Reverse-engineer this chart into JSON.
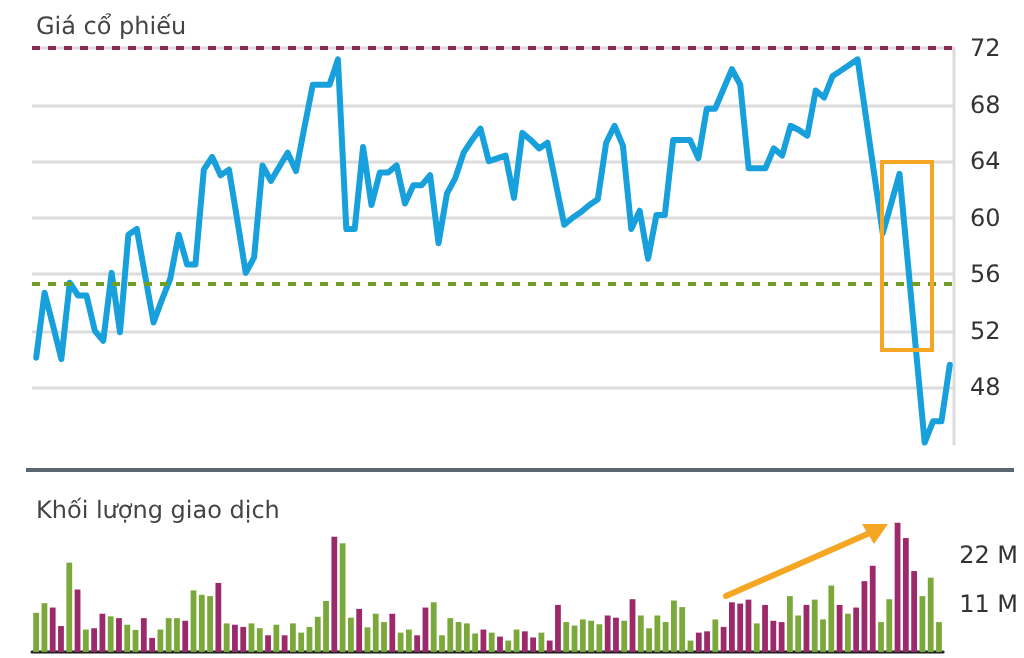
{
  "chart_data": [
    {
      "type": "line",
      "title": "Giá cổ phiếu",
      "tick_labels": "y",
      "grid": "y",
      "line_style": "solid",
      "categories": [
        null,
        null,
        null,
        null,
        null,
        null,
        null,
        null,
        null,
        null,
        null,
        null,
        null,
        null,
        null,
        null,
        null,
        null,
        null,
        null,
        null,
        null,
        null,
        null,
        null,
        null,
        null,
        null,
        null,
        null,
        null,
        null,
        null,
        null,
        null,
        null,
        null,
        null,
        null,
        null,
        null,
        null,
        null,
        null,
        null,
        null,
        null,
        null,
        null,
        null,
        null,
        null,
        null,
        null,
        null,
        null,
        null,
        null,
        null,
        null,
        null,
        null,
        null,
        null,
        null,
        null,
        null,
        null,
        null,
        null,
        null,
        null,
        null,
        null,
        null,
        null,
        null,
        null,
        null,
        null,
        null,
        null,
        null,
        null,
        null,
        null,
        null,
        null,
        null,
        null,
        null,
        null,
        null,
        null,
        null,
        null,
        null,
        null,
        null,
        null,
        null,
        null,
        null,
        null,
        null,
        null,
        null,
        null,
        null,
        null
      ],
      "ylim": [
        44,
        72
      ],
      "yticks": [
        48,
        52,
        56,
        60,
        64,
        68,
        72
      ],
      "series": [
        {
          "color": "#17a0dc",
          "values": [
            50.1,
            54.7,
            52.4,
            50.0,
            55.4,
            54.5,
            54.5,
            52.0,
            51.3,
            56.1,
            51.9,
            58.8,
            59.2,
            55.9,
            52.6,
            54.2,
            55.7,
            58.8,
            56.7,
            56.7,
            63.4,
            64.3,
            63.0,
            63.4,
            59.8,
            56.1,
            57.2,
            63.7,
            62.6,
            63.6,
            64.6,
            63.3,
            66.4,
            69.4,
            69.4,
            69.4,
            71.2,
            59.2,
            59.2,
            65.0,
            60.9,
            63.2,
            63.2,
            63.7,
            61.0,
            62.3,
            62.3,
            63.0,
            58.2,
            61.7,
            62.8,
            64.6,
            65.5,
            66.3,
            64.0,
            64.2,
            64.4,
            61.4,
            66.0,
            65.5,
            64.9,
            65.3,
            62.4,
            59.5,
            60.0,
            60.4,
            60.9,
            61.3,
            65.3,
            66.5,
            65.1,
            59.2,
            60.5,
            57.1,
            60.2,
            60.2,
            65.5,
            65.5,
            65.5,
            64.2,
            67.7,
            67.7,
            69.1,
            70.5,
            69.4,
            63.5,
            63.5,
            63.5,
            64.9,
            64.4,
            66.5,
            66.2,
            65.8,
            69.0,
            68.5,
            70.0,
            70.4,
            70.8,
            71.2,
            67.1,
            63.0,
            58.9,
            61.0,
            63.1,
            56.8,
            50.4,
            44.1,
            45.6,
            45.6,
            49.6
          ]
        }
      ],
      "ref_lines": [
        {
          "axis": "y",
          "value": 72,
          "color": "#8e2a57",
          "line_style": "dashed"
        },
        {
          "axis": "y",
          "value": 55.3,
          "color": "#6e9e24",
          "line_style": "dashed"
        }
      ]
    },
    {
      "type": "bar",
      "title": "Khối lượng giao dịch",
      "tick_labels": "y",
      "categories": [
        null,
        null,
        null,
        null,
        null,
        null,
        null,
        null,
        null,
        null,
        null,
        null,
        null,
        null,
        null,
        null,
        null,
        null,
        null,
        null,
        null,
        null,
        null,
        null,
        null,
        null,
        null,
        null,
        null,
        null,
        null,
        null,
        null,
        null,
        null,
        null,
        null,
        null,
        null,
        null,
        null,
        null,
        null,
        null,
        null,
        null,
        null,
        null,
        null,
        null,
        null,
        null,
        null,
        null,
        null,
        null,
        null,
        null,
        null,
        null,
        null,
        null,
        null,
        null,
        null,
        null,
        null,
        null,
        null,
        null,
        null,
        null,
        null,
        null,
        null,
        null,
        null,
        null,
        null,
        null,
        null,
        null,
        null,
        null,
        null,
        null,
        null,
        null,
        null,
        null,
        null,
        null,
        null,
        null,
        null,
        null,
        null,
        null,
        null,
        null,
        null,
        null,
        null,
        null,
        null,
        null,
        null,
        null,
        null,
        null
      ],
      "ylim": [
        0,
        30
      ],
      "yticks": [
        {
          "value": 11,
          "label": "11 M"
        },
        {
          "value": 22,
          "label": "22 M"
        }
      ],
      "values": [
        8.9,
        11.1,
        10.1,
        5.9,
        20.3,
        14.2,
        5.1,
        5.4,
        8.7,
        8.1,
        7.7,
        6.2,
        5.0,
        7.7,
        3.2,
        5.1,
        7.7,
        7.7,
        7.1,
        14.0,
        13.0,
        12.7,
        15.7,
        6.5,
        6.2,
        5.7,
        6.5,
        5.4,
        3.8,
        6.2,
        3.8,
        6.5,
        4.4,
        5.7,
        8.0,
        11.6,
        26.2,
        24.7,
        7.8,
        9.8,
        5.6,
        8.7,
        6.8,
        8.7,
        4.4,
        5.1,
        3.8,
        10.1,
        11.3,
        3.8,
        7.7,
        6.8,
        6.5,
        4.2,
        5.1,
        4.4,
        3.5,
        2.6,
        5.1,
        4.7,
        3.3,
        4.4,
        2.6,
        10.7,
        6.8,
        6.0,
        7.4,
        7.1,
        6.3,
        8.3,
        7.8,
        7.1,
        12.0,
        8.3,
        5.4,
        8.3,
        6.8,
        11.7,
        10.2,
        2.6,
        4.4,
        4.7,
        7.4,
        5.7,
        11.3,
        11.0,
        11.9,
        6.5,
        10.7,
        7.1,
        6.8,
        12.7,
        8.3,
        10.7,
        11.9,
        7.4,
        15.1,
        10.7,
        8.7,
        10.1,
        16.1,
        19.6,
        6.8,
        12.0,
        29.4,
        25.9,
        18.4,
        12.7,
        16.9,
        6.8
      ],
      "colors": [
        "#7aa83a",
        "#7aa83a",
        "#9c2a6b",
        "#9c2a6b",
        "#7aa83a",
        "#9c2a6b",
        "#7aa83a",
        "#9c2a6b",
        "#9c2a6b",
        "#7aa83a",
        "#9c2a6b",
        "#7aa83a",
        "#7aa83a",
        "#9c2a6b",
        "#9c2a6b",
        "#7aa83a",
        "#7aa83a",
        "#7aa83a",
        "#9c2a6b",
        "#7aa83a",
        "#7aa83a",
        "#7aa83a",
        "#9c2a6b",
        "#7aa83a",
        "#9c2a6b",
        "#9c2a6b",
        "#7aa83a",
        "#7aa83a",
        "#9c2a6b",
        "#7aa83a",
        "#9c2a6b",
        "#7aa83a",
        "#7aa83a",
        "#7aa83a",
        "#7aa83a",
        "#7aa83a",
        "#9c2a6b",
        "#7aa83a",
        "#7aa83a",
        "#9c2a6b",
        "#7aa83a",
        "#7aa83a",
        "#7aa83a",
        "#9c2a6b",
        "#7aa83a",
        "#7aa83a",
        "#9c2a6b",
        "#9c2a6b",
        "#7aa83a",
        "#7aa83a",
        "#7aa83a",
        "#7aa83a",
        "#7aa83a",
        "#7aa83a",
        "#9c2a6b",
        "#7aa83a",
        "#9c2a6b",
        "#7aa83a",
        "#7aa83a",
        "#9c2a6b",
        "#9c2a6b",
        "#7aa83a",
        "#9c2a6b",
        "#9c2a6b",
        "#7aa83a",
        "#7aa83a",
        "#7aa83a",
        "#7aa83a",
        "#7aa83a",
        "#9c2a6b",
        "#9c2a6b",
        "#7aa83a",
        "#9c2a6b",
        "#7aa83a",
        "#7aa83a",
        "#7aa83a",
        "#7aa83a",
        "#7aa83a",
        "#7aa83a",
        "#7aa83a",
        "#9c2a6b",
        "#9c2a6b",
        "#7aa83a",
        "#9c2a6b",
        "#9c2a6b",
        "#9c2a6b",
        "#9c2a6b",
        "#7aa83a",
        "#9c2a6b",
        "#9c2a6b",
        "#9c2a6b",
        "#7aa83a",
        "#7aa83a",
        "#9c2a6b",
        "#7aa83a",
        "#7aa83a",
        "#7aa83a",
        "#9c2a6b",
        "#7aa83a",
        "#9c2a6b",
        "#9c2a6b",
        "#9c2a6b",
        "#7aa83a",
        "#7aa83a",
        "#9c2a6b",
        "#9c2a6b",
        "#9c2a6b",
        "#7aa83a",
        "#7aa83a",
        "#7aa83a"
      ]
    }
  ]
}
